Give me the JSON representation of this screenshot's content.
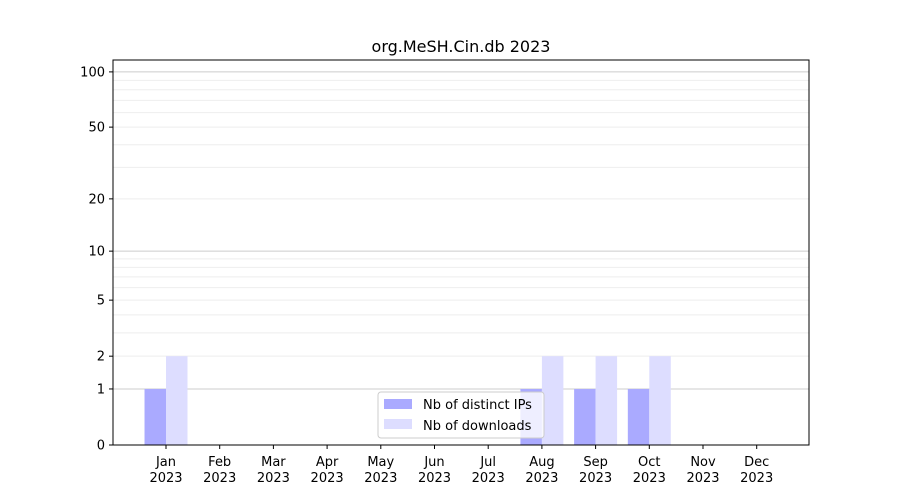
{
  "chart_data": {
    "type": "bar",
    "title": "org.MeSH.Cin.db 2023",
    "xlabel": "",
    "ylabel": "",
    "categories": [
      "Jan\n2023",
      "Feb\n2023",
      "Mar\n2023",
      "Apr\n2023",
      "May\n2023",
      "Jun\n2023",
      "Jul\n2023",
      "Aug\n2023",
      "Sep\n2023",
      "Oct\n2023",
      "Nov\n2023",
      "Dec\n2023"
    ],
    "series": [
      {
        "name": "Nb of distinct IPs",
        "color": "#aaaaff",
        "values": [
          1,
          0,
          0,
          0,
          0,
          0,
          0,
          1,
          1,
          1,
          0,
          0
        ]
      },
      {
        "name": "Nb of downloads",
        "color": "#ddddff",
        "values": [
          2,
          0,
          0,
          0,
          0,
          0,
          0,
          2,
          2,
          2,
          0,
          0
        ]
      }
    ],
    "yscale": "log(1+y)",
    "ylim": [
      0,
      116
    ],
    "yticks": [
      0,
      1,
      2,
      5,
      10,
      20,
      50,
      100
    ],
    "ytick_labels": [
      "0",
      "1",
      "2",
      "5",
      "10",
      "20",
      "50",
      "100"
    ],
    "grid": true,
    "legend_position": "lower-center"
  }
}
